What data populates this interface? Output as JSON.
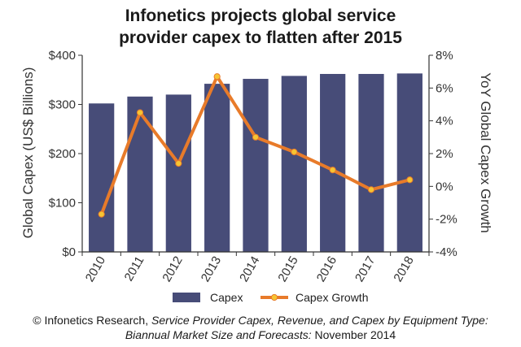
{
  "chart_data": {
    "type": "bar+line",
    "title_line1": "Infonetics projects global service",
    "title_line2": "provider capex to flatten after 2015",
    "categories": [
      "2010",
      "2011",
      "2012",
      "2013",
      "2014",
      "2015",
      "2016",
      "2017",
      "2018"
    ],
    "series": [
      {
        "name": "Capex",
        "type": "bar",
        "axis": "left",
        "values": [
          302,
          316,
          320,
          342,
          352,
          358,
          362,
          362,
          363
        ]
      },
      {
        "name": "Capex Growth",
        "type": "line",
        "axis": "right",
        "values": [
          -1.7,
          4.5,
          1.4,
          6.7,
          3.0,
          2.1,
          1.0,
          -0.2,
          0.4
        ]
      }
    ],
    "ylabel_left": "Global Capex (US$ Billions)",
    "ylabel_right": "YoY Global Capex Growth",
    "ylim_left": [
      0,
      400
    ],
    "ylim_right": [
      -4,
      8
    ],
    "left_ticks": [
      "$0",
      "$100",
      "$200",
      "$300",
      "$400"
    ],
    "right_ticks": [
      "-4%",
      "-2%",
      "0%",
      "2%",
      "4%",
      "6%",
      "8%"
    ],
    "legend": [
      "Capex",
      "Capex Growth"
    ],
    "legend_position": "bottom"
  },
  "caption": {
    "line1_prefix": "© Infonetics Research, ",
    "line1_italic": "Service Provider Capex, Revenue, and Capex by Equipment Type:",
    "line2_italic": "Biannual Market Size and Forecasts:",
    "line2_suffix": " November 2014"
  },
  "colors": {
    "bar": "#474c78",
    "line": "#e87b2a",
    "marker": "#f6c533",
    "axis": "#333333"
  }
}
